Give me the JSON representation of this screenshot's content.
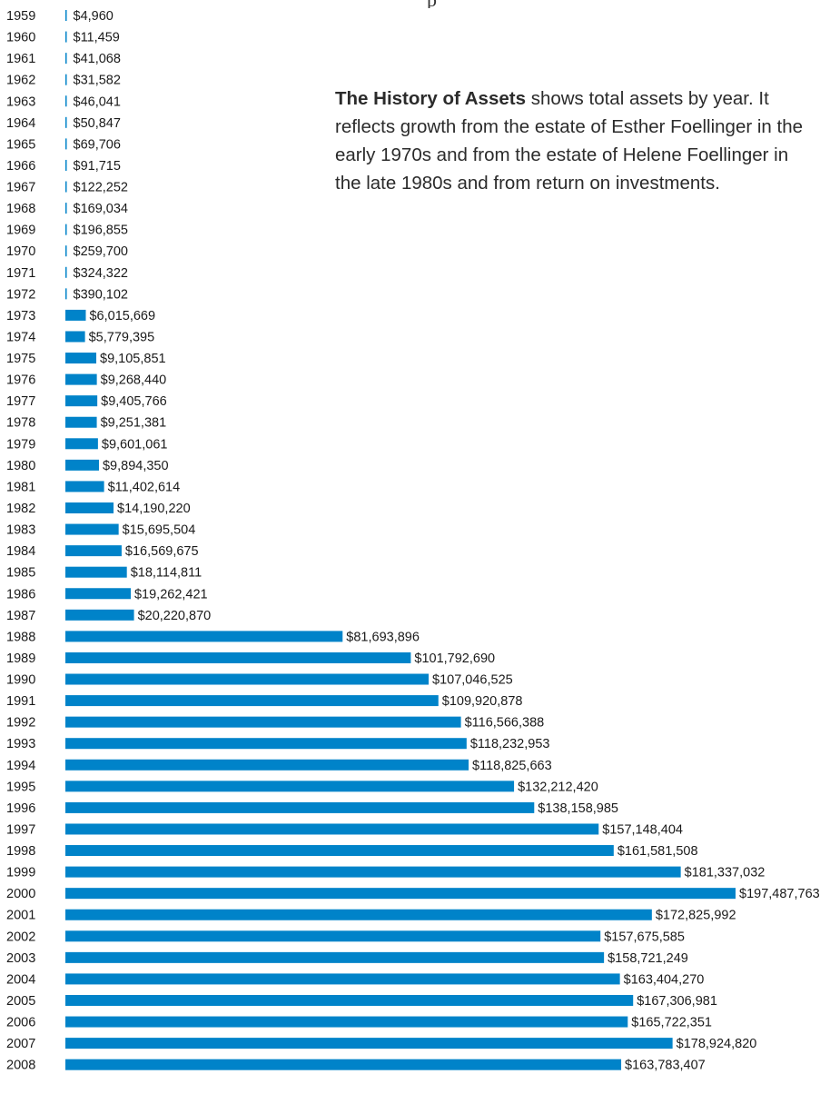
{
  "description": {
    "bold_lead": "The History of Assets",
    "text": " shows total assets by year. It reflects growth from the estate of Esther Foellinger in the early 1970s and from the estate of Helene Foellinger in the late 1980s and from return on investments."
  },
  "colors": {
    "bar": "#0083c9",
    "text": "#1a1a1a"
  },
  "chart_data": {
    "type": "bar",
    "orientation": "horizontal",
    "categories": [
      "1959",
      "1960",
      "1961",
      "1962",
      "1963",
      "1964",
      "1965",
      "1966",
      "1967",
      "1968",
      "1969",
      "1970",
      "1971",
      "1972",
      "1973",
      "1974",
      "1975",
      "1976",
      "1977",
      "1978",
      "1979",
      "1980",
      "1981",
      "1982",
      "1983",
      "1984",
      "1985",
      "1986",
      "1987",
      "1988",
      "1989",
      "1990",
      "1991",
      "1992",
      "1993",
      "1994",
      "1995",
      "1996",
      "1997",
      "1998",
      "1999",
      "2000",
      "2001",
      "2002",
      "2003",
      "2004",
      "2005",
      "2006",
      "2007",
      "2008"
    ],
    "values": [
      4960,
      11459,
      41068,
      31582,
      46041,
      50847,
      69706,
      91715,
      122252,
      169034,
      196855,
      259700,
      324322,
      390102,
      6015669,
      5779395,
      9105851,
      9268440,
      9405766,
      9251381,
      9601061,
      9894350,
      11402614,
      14190220,
      15695504,
      16569675,
      18114811,
      19262421,
      20220870,
      81693896,
      101792690,
      107046525,
      109920878,
      116566388,
      118232953,
      118825663,
      132212420,
      138158985,
      157148404,
      161581508,
      181337032,
      197487763,
      172825992,
      157675585,
      158721249,
      163404270,
      167306981,
      165722351,
      178924820,
      163783407
    ],
    "labels": [
      "$4,960",
      "$11,459",
      "$41,068",
      "$31,582",
      "$46,041",
      "$50,847",
      "$69,706",
      "$91,715",
      "$122,252",
      "$169,034",
      "$196,855",
      "$259,700",
      "$324,322",
      "$390,102",
      "$6,015,669",
      "$5,779,395",
      "$9,105,851",
      "$9,268,440",
      "$9,405,766",
      "$9,251,381",
      "$9,601,061",
      "$9,894,350",
      "$11,402,614",
      "$14,190,220",
      "$15,695,504",
      "$16,569,675",
      "$18,114,811",
      "$19,262,421",
      "$20,220,870",
      "$81,693,896",
      "$101,792,690",
      "$107,046,525",
      "$109,920,878",
      "$116,566,388",
      "$118,232,953",
      "$118,825,663",
      "$132,212,420",
      "$138,158,985",
      "$157,148,404",
      "$161,581,508",
      "$181,337,032",
      "$197,487,763",
      "$172,825,992",
      "$157,675,585",
      "$158,721,249",
      "$163,404,270",
      "$167,306,981",
      "$165,722,351",
      "$178,924,820",
      "$163,783,407"
    ],
    "title": "",
    "xlabel": "",
    "ylabel": "",
    "grid": false,
    "legend": "none"
  }
}
